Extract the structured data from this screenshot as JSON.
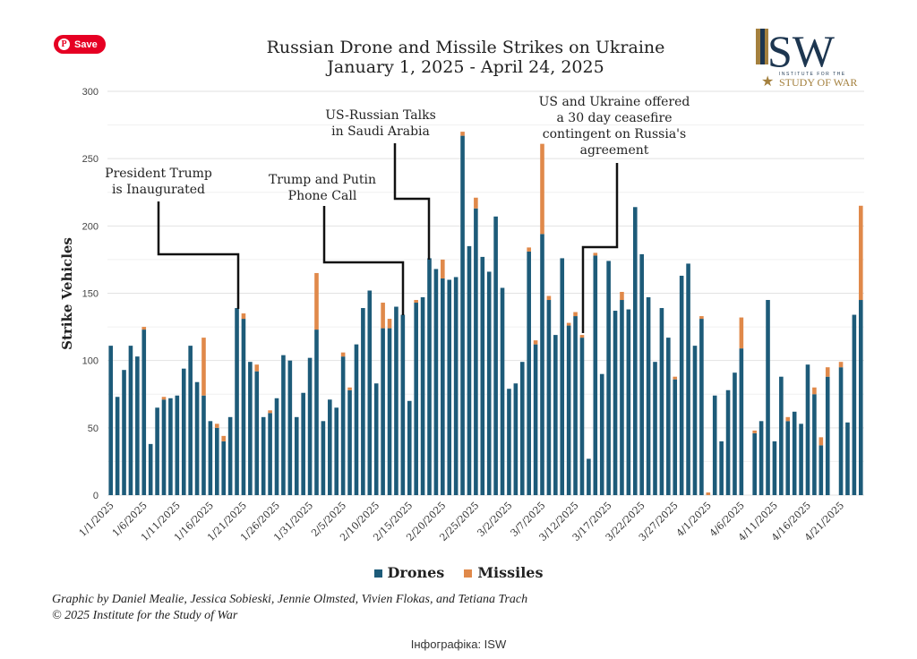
{
  "pin_button": {
    "label": "Save",
    "icon": "pinterest-icon"
  },
  "logo": {
    "text": "ISW",
    "subtext_1": "INSTITUTE FOR THE",
    "subtext_2": "STUDY OF WAR"
  },
  "credits": {
    "line1": "Graphic by Daniel Mealie, Jessica Sobieski, Jennie Olmsted, Vivien Flokas, and Tetiana Trach",
    "line2": "© 2025 Institute for the Study of War"
  },
  "caption": "Інфографіка: ISW",
  "chart_data": {
    "type": "bar",
    "stacked": true,
    "title": "Russian Drone and Missile Strikes on Ukraine",
    "subtitle": "January 1, 2025 - April 24, 2025",
    "ylabel": "Strike Vehicles",
    "xlabel": "",
    "ylim": [
      0,
      300
    ],
    "yticks": [
      0,
      50,
      100,
      150,
      200,
      250,
      300
    ],
    "grid": true,
    "legend_position": "bottom",
    "start_date": "2025-01-01",
    "xtick_labels": [
      "1/1/2025",
      "1/6/2025",
      "1/11/2025",
      "1/16/2025",
      "1/21/2025",
      "1/26/2025",
      "1/31/2025",
      "2/5/2025",
      "2/10/2025",
      "2/15/2025",
      "2/20/2025",
      "2/25/2025",
      "3/2/2025",
      "3/7/2025",
      "3/12/2025",
      "3/17/2025",
      "3/22/2025",
      "3/27/2025",
      "4/1/2025",
      "4/6/2025",
      "4/11/2025",
      "4/16/2025",
      "4/21/2025"
    ],
    "colors": {
      "Drones": "#1d5b79",
      "Missiles": "#e0894a"
    },
    "series": [
      {
        "name": "Drones",
        "values": [
          111,
          73,
          93,
          111,
          103,
          123,
          38,
          65,
          71,
          72,
          74,
          94,
          111,
          84,
          74,
          55,
          50,
          40,
          58,
          139,
          131,
          99,
          92,
          58,
          61,
          72,
          104,
          100,
          58,
          76,
          102,
          123,
          55,
          71,
          65,
          103,
          78,
          112,
          139,
          152,
          83,
          124,
          124,
          140,
          134,
          70,
          143,
          147,
          176,
          168,
          161,
          160,
          162,
          267,
          185,
          213,
          177,
          166,
          207,
          154,
          79,
          83,
          99,
          181,
          112,
          194,
          145,
          119,
          176,
          126,
          133,
          117,
          27,
          178,
          90,
          174,
          137,
          145,
          138,
          214,
          179,
          147,
          99,
          139,
          117,
          86,
          163,
          172,
          111,
          131,
          0,
          74,
          40,
          78,
          91,
          109,
          0,
          46,
          55,
          145,
          40,
          88,
          55,
          62,
          53,
          97,
          75,
          37,
          88,
          0,
          95,
          54,
          134,
          145
        ]
      },
      {
        "name": "Missiles",
        "values": [
          0,
          0,
          0,
          0,
          0,
          2,
          0,
          0,
          2,
          0,
          0,
          0,
          0,
          0,
          43,
          0,
          3,
          4,
          0,
          0,
          4,
          0,
          5,
          0,
          2,
          0,
          0,
          0,
          0,
          0,
          0,
          42,
          0,
          0,
          0,
          3,
          2,
          0,
          0,
          0,
          0,
          19,
          7,
          0,
          0,
          0,
          2,
          0,
          0,
          0,
          14,
          0,
          0,
          3,
          0,
          8,
          0,
          0,
          0,
          0,
          0,
          0,
          0,
          3,
          3,
          67,
          3,
          0,
          0,
          2,
          3,
          2,
          0,
          2,
          0,
          0,
          0,
          6,
          0,
          0,
          0,
          0,
          0,
          0,
          0,
          2,
          0,
          0,
          0,
          2,
          2,
          0,
          0,
          0,
          0,
          23,
          0,
          2,
          0,
          0,
          0,
          0,
          3,
          0,
          0,
          0,
          5,
          6,
          7,
          0,
          4,
          0,
          0,
          70
        ]
      }
    ],
    "annotations": [
      {
        "text": [
          "President Trump",
          "is Inaugurated"
        ],
        "date": "1/20/2025"
      },
      {
        "text": [
          "Trump and Putin",
          "Phone Call"
        ],
        "date": "2/12/2025"
      },
      {
        "text": [
          "US-Russian Talks",
          "in Saudi Arabia"
        ],
        "date": "2/18/2025"
      },
      {
        "text": [
          "US and Ukraine offered",
          "a 30 day ceasefire",
          "contingent on Russia's",
          "agreement"
        ],
        "date": "3/11/2025"
      }
    ]
  }
}
